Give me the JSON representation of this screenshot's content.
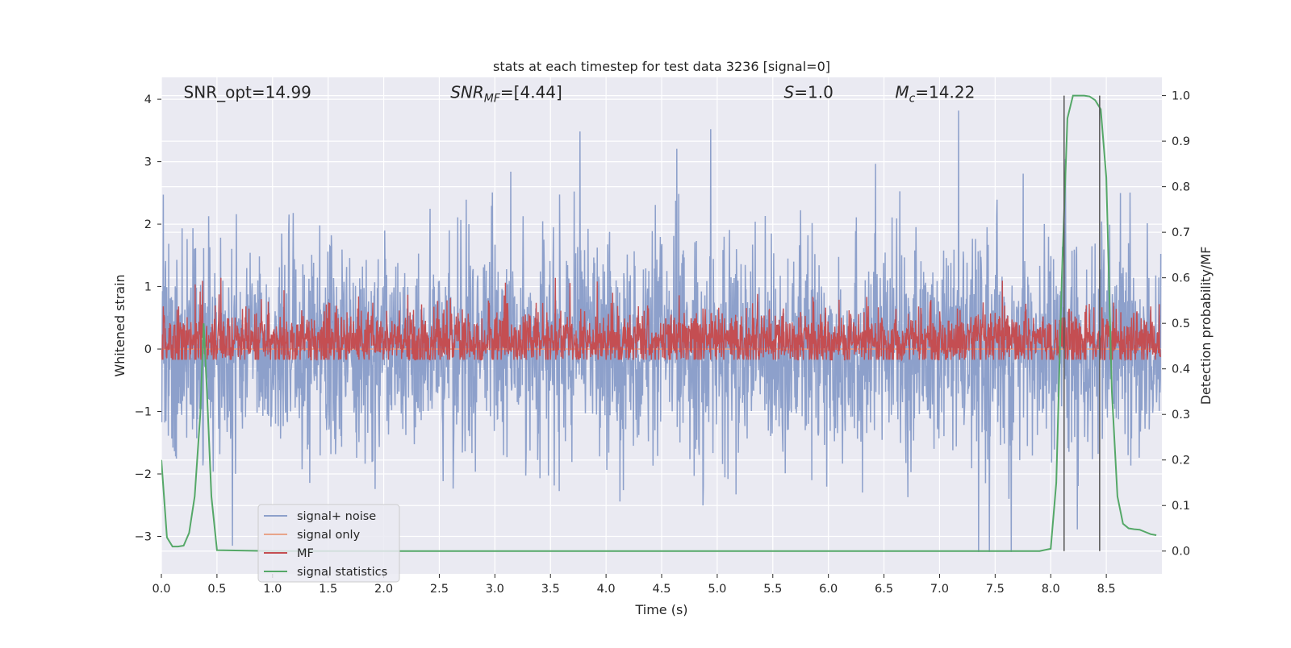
{
  "chart_data": {
    "type": "line",
    "title": "stats at each timestep for test data 3236 [signal=0]",
    "xlabel": "Time (s)",
    "ylabel": "Whitened strain",
    "y2label": "Detection probability/MF",
    "xlim": [
      0,
      9
    ],
    "ylim": [
      -3.6,
      4.35
    ],
    "y2lim": [
      -0.05,
      1.04
    ],
    "x_ticks": [
      0.0,
      0.5,
      1.0,
      1.5,
      2.0,
      2.5,
      3.0,
      3.5,
      4.0,
      4.5,
      5.0,
      5.5,
      6.0,
      6.5,
      7.0,
      7.5,
      8.0,
      8.5
    ],
    "x_tick_labels": [
      "0.0",
      "0.5",
      "1.0",
      "1.5",
      "2.0",
      "2.5",
      "3.0",
      "3.5",
      "4.0",
      "4.5",
      "5.0",
      "5.5",
      "6.0",
      "6.5",
      "7.0",
      "7.5",
      "8.0",
      "8.5"
    ],
    "y_ticks": [
      -3,
      -2,
      -1,
      0,
      1,
      2,
      3,
      4
    ],
    "y_tick_labels": [
      "−3",
      "−2",
      "−1",
      "0",
      "1",
      "2",
      "3",
      "4"
    ],
    "y2_ticks": [
      0.0,
      0.1,
      0.2,
      0.3,
      0.4,
      0.5,
      0.6,
      0.7,
      0.8,
      0.9,
      1.0
    ],
    "y2_tick_labels": [
      "0.0",
      "0.1",
      "0.2",
      "0.3",
      "0.4",
      "0.5",
      "0.6",
      "0.7",
      "0.8",
      "0.9",
      "1.0"
    ],
    "grid": true,
    "legend_position": "lower-left",
    "annotations": [
      {
        "text": "SNR_opt=14.99",
        "x": 0.2,
        "y": 4.1
      },
      {
        "text": "SNR_MF=[4.44]",
        "x": 2.6,
        "y": 4.1
      },
      {
        "text": "S=1.0",
        "x": 5.6,
        "y": 4.1
      },
      {
        "text": "M_c=14.22",
        "x": 6.6,
        "y": 4.1
      }
    ],
    "vertical_lines": [
      8.12,
      8.44
    ],
    "series": [
      {
        "name": "signal+ noise",
        "axis": "left",
        "color": "#8da0cb",
        "kind": "noise",
        "envelope": {
          "upper_typical": 1.8,
          "lower_typical": -1.8,
          "max": 4.0,
          "min": -3.25
        }
      },
      {
        "name": "signal only",
        "axis": "left",
        "color": "#e8a58a",
        "kind": "flat",
        "value": 0.0
      },
      {
        "name": "MF",
        "axis": "right",
        "color": "#c44e52",
        "kind": "noise",
        "envelope": {
          "base": 0.46,
          "low": 0.42,
          "high": 0.56,
          "max": 0.6
        }
      },
      {
        "name": "signal statistics",
        "axis": "right",
        "color": "#55a868",
        "kind": "line",
        "x": [
          0.0,
          0.05,
          0.1,
          0.15,
          0.2,
          0.25,
          0.3,
          0.35,
          0.38,
          0.41,
          0.45,
          0.5,
          1.0,
          2.0,
          3.0,
          4.0,
          5.0,
          6.0,
          7.0,
          7.9,
          8.0,
          8.05,
          8.1,
          8.15,
          8.2,
          8.25,
          8.3,
          8.35,
          8.4,
          8.45,
          8.5,
          8.55,
          8.6,
          8.65,
          8.7,
          8.75,
          8.8,
          8.85,
          8.9,
          8.95
        ],
        "y": [
          0.2,
          0.03,
          0.01,
          0.01,
          0.012,
          0.04,
          0.12,
          0.3,
          0.5,
          0.35,
          0.12,
          0.002,
          0.0,
          0.0,
          0.0,
          0.0,
          0.0,
          0.0,
          0.0,
          0.0,
          0.005,
          0.15,
          0.6,
          0.95,
          1.0,
          1.0,
          1.0,
          0.998,
          0.99,
          0.97,
          0.82,
          0.35,
          0.12,
          0.06,
          0.05,
          0.048,
          0.047,
          0.042,
          0.037,
          0.035
        ]
      }
    ]
  }
}
